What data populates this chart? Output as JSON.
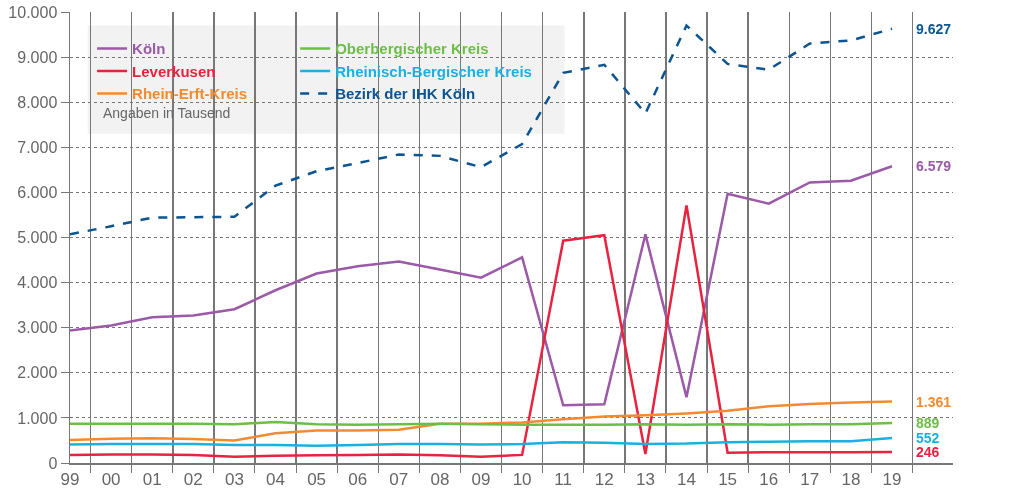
{
  "chart_data": {
    "type": "line",
    "categories": [
      "99",
      "00",
      "01",
      "02",
      "03",
      "04",
      "05",
      "06",
      "07",
      "08",
      "09",
      "10",
      "11",
      "12",
      "13",
      "14",
      "15",
      "16",
      "17",
      "18",
      "19"
    ],
    "series": [
      {
        "name": "Köln",
        "color": "#9b59a8",
        "values": [
          2940,
          3050,
          3230,
          3270,
          3410,
          3830,
          4200,
          4360,
          4470,
          4290,
          4110,
          4560,
          1280,
          1300,
          5070,
          1460,
          5970,
          5750,
          6220,
          6260,
          6579
        ],
        "value_labels": [
          null,
          null,
          null,
          null,
          null,
          null,
          null,
          null,
          null,
          null,
          null,
          null,
          null,
          null,
          null,
          null,
          null,
          null,
          null,
          null,
          "6.579"
        ]
      },
      {
        "name": "Leverkusen",
        "color": "#e8233f",
        "values": [
          180,
          190,
          190,
          180,
          140,
          160,
          170,
          180,
          190,
          170,
          140,
          180,
          4930,
          5050,
          200,
          5710,
          230,
          240,
          240,
          240,
          246
        ],
        "value_labels": [
          null,
          null,
          null,
          null,
          null,
          null,
          null,
          null,
          null,
          null,
          null,
          null,
          null,
          null,
          null,
          null,
          null,
          null,
          null,
          null,
          "246"
        ]
      },
      {
        "name": "Rhein-Erft-Kreis",
        "color": "#f28b30",
        "values": [
          510,
          540,
          550,
          530,
          500,
          660,
          720,
          720,
          740,
          870,
          870,
          900,
          970,
          1030,
          1060,
          1100,
          1160,
          1260,
          1310,
          1340,
          1361
        ],
        "value_labels": [
          null,
          null,
          null,
          null,
          null,
          null,
          null,
          null,
          null,
          null,
          null,
          null,
          null,
          null,
          null,
          null,
          null,
          null,
          null,
          null,
          "1.361"
        ]
      },
      {
        "name": "Oberbergischer Kreis",
        "color": "#6cbf45",
        "values": [
          870,
          870,
          870,
          870,
          860,
          910,
          860,
          850,
          860,
          870,
          860,
          850,
          850,
          850,
          860,
          850,
          860,
          850,
          860,
          860,
          889
        ],
        "value_labels": [
          null,
          null,
          null,
          null,
          null,
          null,
          null,
          null,
          null,
          null,
          null,
          null,
          null,
          null,
          null,
          null,
          null,
          null,
          null,
          null,
          "889"
        ]
      },
      {
        "name": "Rheinisch-Bergischer Kreis",
        "color": "#1ab0e0",
        "values": [
          410,
          420,
          420,
          420,
          400,
          400,
          380,
          400,
          420,
          420,
          410,
          420,
          460,
          450,
          420,
          430,
          460,
          470,
          480,
          480,
          552
        ],
        "value_labels": [
          null,
          null,
          null,
          null,
          null,
          null,
          null,
          null,
          null,
          null,
          null,
          null,
          null,
          null,
          null,
          null,
          null,
          null,
          null,
          null,
          "552"
        ]
      },
      {
        "name": "Bezirk der IHK Köln",
        "color": "#0d5490",
        "line_style": "dashed",
        "values": [
          5070,
          5250,
          5440,
          5450,
          5460,
          6150,
          6470,
          6650,
          6840,
          6810,
          6560,
          7070,
          8650,
          8830,
          7750,
          9700,
          8850,
          8720,
          9300,
          9370,
          9627
        ],
        "value_labels": [
          null,
          null,
          null,
          null,
          null,
          null,
          null,
          null,
          null,
          null,
          null,
          null,
          null,
          null,
          null,
          null,
          null,
          null,
          null,
          null,
          "9.627"
        ]
      }
    ],
    "annotations": [
      "Angaben in Tausend"
    ],
    "ylim": [
      0,
      10000
    ],
    "yticks": [
      {
        "value": 0,
        "label": "0"
      },
      {
        "value": 1000,
        "label": "1.000"
      },
      {
        "value": 2000,
        "label": "2.000"
      },
      {
        "value": 3000,
        "label": "3.000"
      },
      {
        "value": 4000,
        "label": "4.000"
      },
      {
        "value": 5000,
        "label": "5.000"
      },
      {
        "value": 6000,
        "label": "6.000"
      },
      {
        "value": 7000,
        "label": "7.000"
      },
      {
        "value": 8000,
        "label": "8.000"
      },
      {
        "value": 9000,
        "label": "9.000"
      },
      {
        "value": 10000,
        "label": "10.000"
      }
    ],
    "grid": true,
    "legend": "top left",
    "line_style": "solid",
    "marker": "none"
  }
}
